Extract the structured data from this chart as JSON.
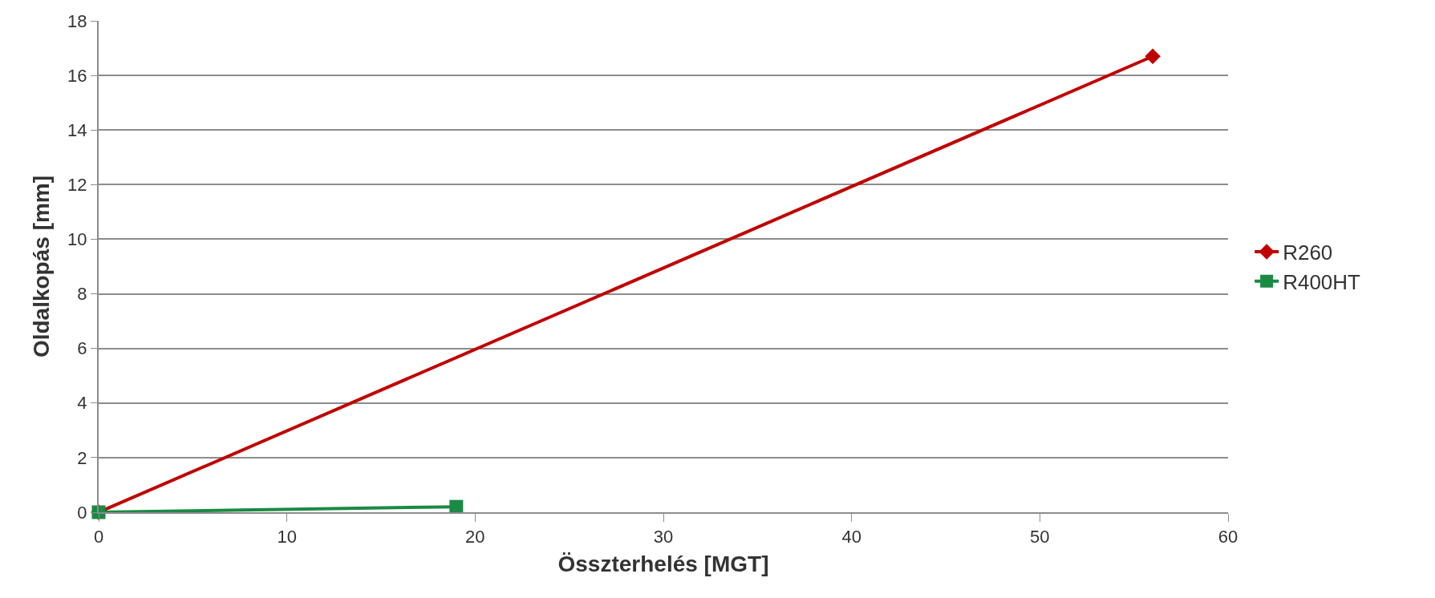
{
  "chart_data": {
    "type": "line",
    "xlabel": "Összterhelés [MGT]",
    "ylabel": "Oldalkopás [mm]",
    "xlim": [
      0,
      60
    ],
    "xticks": [
      0,
      10,
      20,
      30,
      40,
      50,
      60
    ],
    "ylim": [
      0,
      18
    ],
    "yticks": [
      0,
      2,
      4,
      6,
      8,
      10,
      12,
      14,
      16,
      18
    ],
    "grid": "y",
    "legend": "right",
    "line_style": "solid",
    "series": [
      {
        "name": "R260",
        "color": "#c00000",
        "marker": "diamond",
        "x": [
          0,
          56
        ],
        "values": [
          0,
          16.7
        ]
      },
      {
        "name": "R400HT",
        "color": "#1a8a44",
        "marker": "square",
        "x": [
          0,
          19
        ],
        "values": [
          0,
          0.2
        ]
      }
    ]
  }
}
